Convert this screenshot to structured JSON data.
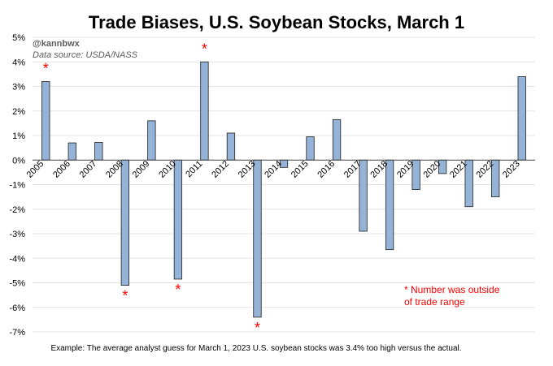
{
  "chart_data": {
    "type": "bar",
    "title": "Trade Biases, U.S. Soybean Stocks, March 1",
    "credit": "@kannbwx",
    "source": "Data source: USDA/NASS",
    "xlabel": "",
    "ylabel": "",
    "ylim": [
      -7,
      5
    ],
    "yticks": [
      5,
      4,
      3,
      2,
      1,
      0,
      -1,
      -2,
      -3,
      -4,
      -5,
      -6,
      -7
    ],
    "ytick_labels": [
      "5%",
      "4%",
      "3%",
      "2%",
      "1%",
      "0%",
      "-1%",
      "-2%",
      "-3%",
      "-4%",
      "-5%",
      "-6%",
      "-7%"
    ],
    "grid": true,
    "categories": [
      "2005",
      "2006",
      "2007",
      "2008",
      "2009",
      "2010",
      "2011",
      "2012",
      "2013",
      "2014",
      "2015",
      "2016",
      "2017",
      "2018",
      "2019",
      "2020",
      "2021",
      "2022",
      "2023"
    ],
    "values": [
      3.2,
      0.7,
      0.72,
      -5.1,
      1.6,
      -4.85,
      4.0,
      1.1,
      -6.4,
      -0.3,
      0.95,
      1.65,
      -2.9,
      -3.65,
      -1.2,
      -0.55,
      -1.9,
      -1.5,
      3.4
    ],
    "outside_range": [
      true,
      false,
      false,
      true,
      false,
      true,
      true,
      false,
      true,
      false,
      false,
      false,
      false,
      false,
      false,
      false,
      false,
      false,
      false
    ],
    "star_symbol": "*",
    "annotation_lines": [
      "* Number was outside",
      "of trade range"
    ],
    "footnote": "Example: The average analyst guess for March 1, 2023 U.S. soybean stocks was 3.4% too high versus the actual.",
    "colors": {
      "bar_fill": "#95b3d7",
      "bar_stroke": "#1f1f1f",
      "star": "#ff0000",
      "grid": "#e3e3e3"
    }
  }
}
